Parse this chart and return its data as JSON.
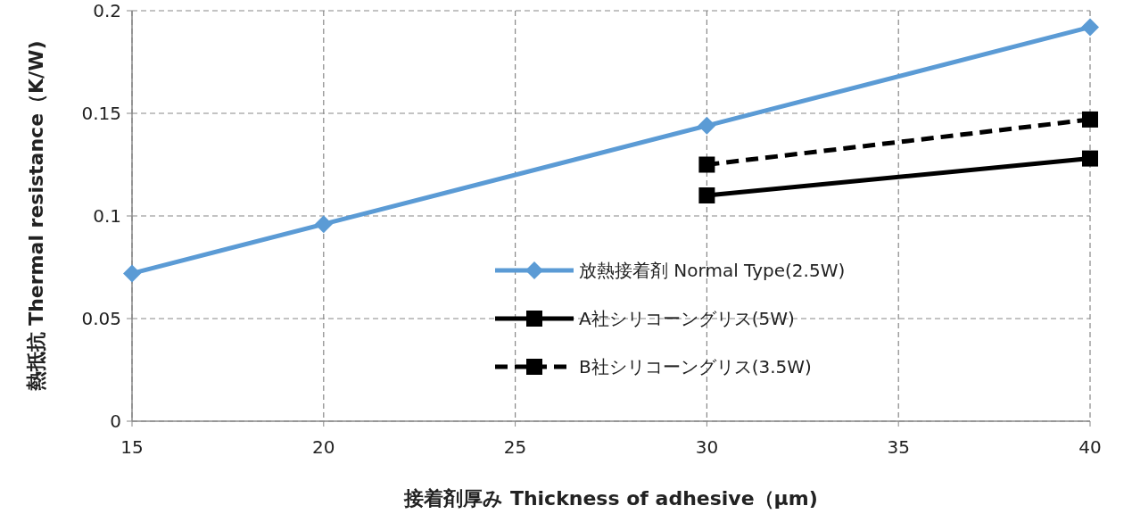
{
  "chart_data": {
    "type": "line",
    "xlabel": "接着剤厚み Thickness of adhesive（µm)",
    "ylabel": "熱抵抗 Thermal resistance（K/W)",
    "xlim": [
      15,
      40
    ],
    "xticks": [
      15,
      20,
      25,
      30,
      35,
      40
    ],
    "ylim": [
      0,
      0.2
    ],
    "yticks": [
      0,
      0.05,
      0.1,
      0.15,
      0.2
    ],
    "grid": true,
    "legend": "bottom right",
    "series": [
      {
        "name": "放熱接着剤 Normal Type(2.5W)",
        "color": "#5b9bd5",
        "x": [
          15,
          20,
          30,
          40
        ],
        "values": [
          0.072,
          0.096,
          0.144,
          0.192
        ],
        "marker": "diamond",
        "line_style": "solid"
      },
      {
        "name": "A社シリコーングリス(5W)",
        "color": "#000000",
        "x": [
          30,
          40
        ],
        "values": [
          0.11,
          0.128
        ],
        "marker": "square",
        "line_style": "solid"
      },
      {
        "name": "B社シリコーングリス(3.5W)",
        "color": "#000000",
        "x": [
          30,
          40
        ],
        "values": [
          0.125,
          0.147
        ],
        "marker": "square",
        "line_style": "dashed"
      }
    ]
  }
}
